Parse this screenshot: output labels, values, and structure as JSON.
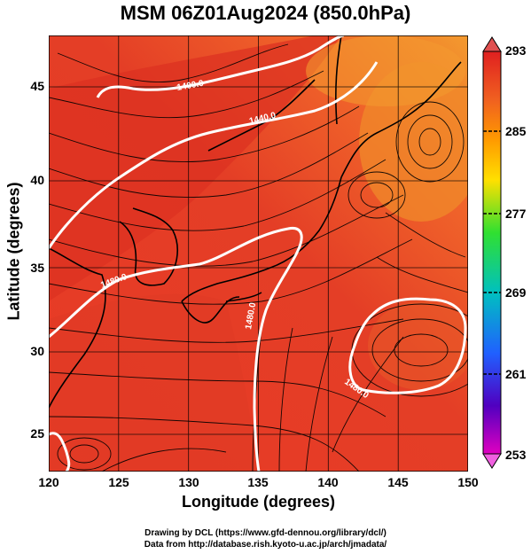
{
  "title": "MSM 06Z01Aug2024 (850.0hPa)",
  "map": {
    "xlabel": "Longitude (degrees)",
    "ylabel": "Latitude  (degrees)",
    "xticks": [
      "120",
      "125",
      "130",
      "135",
      "140",
      "145",
      "150"
    ],
    "yticks": [
      "45",
      "40",
      "35",
      "30",
      "25"
    ],
    "contour_labels": [
      "1400.0",
      "1440.0",
      "1480.0",
      "1480.0",
      "1480.0"
    ],
    "fill_colors": {
      "hot": "#d42a1e",
      "warm": "#f0502a",
      "orange": "#f08a2a"
    },
    "contour_color": "#ffffff",
    "streamline_color": "#000000"
  },
  "colorbar": {
    "ticks": [
      "293",
      "285",
      "277",
      "269",
      "261",
      "253"
    ],
    "colors": [
      "#e02020",
      "#ff8800",
      "#ffe000",
      "#30e030",
      "#00c0c0",
      "#2060ff",
      "#5000c0",
      "#e000c0"
    ]
  },
  "credits": {
    "line1": "Drawing by DCL (https://www.gfd-dennou.org/library/dcl/)",
    "line2": "Data from http://database.rish.kyoto-u.ac.jp/arch/jmadata/"
  }
}
